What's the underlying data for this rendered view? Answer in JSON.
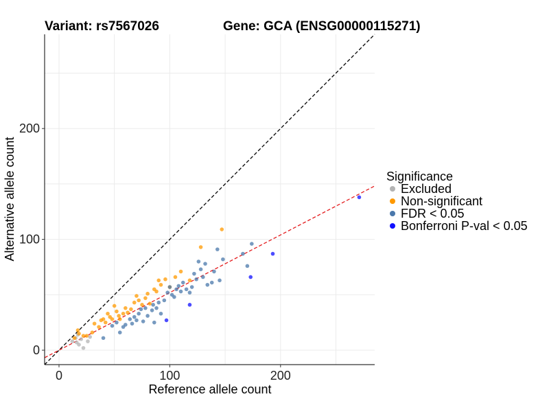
{
  "chart_data": {
    "type": "scatter",
    "title_left": "Variant: rs7567026",
    "title_right": "Gene: GCA (ENSG00000115271)",
    "xlabel": "Reference allele count",
    "ylabel": "Alternative allele count",
    "xlim": [
      -13,
      285
    ],
    "ylim": [
      -13,
      285
    ],
    "xticks": [
      0,
      100,
      200
    ],
    "yticks": [
      0,
      100,
      200
    ],
    "reference_lines": [
      {
        "name": "identity",
        "color": "#000000",
        "slope": 1.0,
        "intercept": 0
      },
      {
        "name": "fit",
        "color": "#e41a1c",
        "slope": 0.52,
        "intercept": 0
      }
    ],
    "legend": {
      "title": "Significance",
      "entries": [
        {
          "label": "Excluded",
          "color": "#b3b3b3"
        },
        {
          "label": "Non-significant",
          "color": "#ff9900"
        },
        {
          "label": "FDR < 0.05",
          "color": "#4a78ab"
        },
        {
          "label": "Bonferroni P-val < 0.05",
          "color": "#1010ff"
        }
      ]
    },
    "series": [
      {
        "name": "Excluded",
        "color": "#b3b3b3",
        "points": [
          [
            12,
            8
          ],
          [
            15,
            11
          ],
          [
            16,
            7
          ],
          [
            18,
            5
          ],
          [
            20,
            10
          ],
          [
            22,
            2
          ],
          [
            26,
            8
          ],
          [
            28,
            12
          ],
          [
            17,
            14
          ]
        ]
      },
      {
        "name": "Non-significant",
        "color": "#ff9900",
        "points": [
          [
            14,
            11
          ],
          [
            18,
            15
          ],
          [
            17,
            18
          ],
          [
            22,
            13
          ],
          [
            25,
            13
          ],
          [
            30,
            16
          ],
          [
            32,
            24
          ],
          [
            36,
            21
          ],
          [
            38,
            27
          ],
          [
            40,
            28
          ],
          [
            42,
            25
          ],
          [
            44,
            33
          ],
          [
            46,
            30
          ],
          [
            48,
            28
          ],
          [
            50,
            40
          ],
          [
            52,
            35
          ],
          [
            54,
            31
          ],
          [
            55,
            28
          ],
          [
            58,
            33
          ],
          [
            60,
            38
          ],
          [
            62,
            34
          ],
          [
            65,
            37
          ],
          [
            68,
            43
          ],
          [
            70,
            49
          ],
          [
            72,
            45
          ],
          [
            75,
            41
          ],
          [
            78,
            47
          ],
          [
            80,
            51
          ],
          [
            82,
            42
          ],
          [
            86,
            55
          ],
          [
            88,
            53
          ],
          [
            90,
            63
          ],
          [
            92,
            59
          ],
          [
            96,
            64
          ],
          [
            100,
            57
          ],
          [
            105,
            66
          ],
          [
            110,
            71
          ],
          [
            118,
            63
          ],
          [
            128,
            93
          ],
          [
            147,
            109
          ]
        ]
      },
      {
        "name": "FDR < 0.05",
        "color": "#4a78ab",
        "points": [
          [
            40,
            11
          ],
          [
            48,
            22
          ],
          [
            52,
            25
          ],
          [
            55,
            16
          ],
          [
            58,
            21
          ],
          [
            60,
            23
          ],
          [
            64,
            28
          ],
          [
            66,
            24
          ],
          [
            68,
            30
          ],
          [
            70,
            27
          ],
          [
            72,
            33
          ],
          [
            74,
            37
          ],
          [
            76,
            26
          ],
          [
            78,
            38
          ],
          [
            80,
            31
          ],
          [
            84,
            36
          ],
          [
            85,
            41
          ],
          [
            86,
            25
          ],
          [
            88,
            38
          ],
          [
            90,
            43
          ],
          [
            92,
            33
          ],
          [
            95,
            45
          ],
          [
            98,
            52
          ],
          [
            100,
            57
          ],
          [
            102,
            50
          ],
          [
            104,
            48
          ],
          [
            106,
            55
          ],
          [
            108,
            58
          ],
          [
            110,
            53
          ],
          [
            112,
            61
          ],
          [
            115,
            55
          ],
          [
            118,
            52
          ],
          [
            120,
            57
          ],
          [
            122,
            69
          ],
          [
            124,
            64
          ],
          [
            126,
            80
          ],
          [
            128,
            73
          ],
          [
            130,
            66
          ],
          [
            132,
            78
          ],
          [
            134,
            59
          ],
          [
            138,
            61
          ],
          [
            140,
            71
          ],
          [
            143,
            91
          ],
          [
            145,
            63
          ],
          [
            148,
            82
          ],
          [
            166,
            87
          ],
          [
            170,
            76
          ],
          [
            174,
            96
          ]
        ]
      },
      {
        "name": "Bonferroni P-val < 0.05",
        "color": "#1010ff",
        "points": [
          [
            97,
            27
          ],
          [
            118,
            41
          ],
          [
            173,
            66
          ],
          [
            193,
            87
          ],
          [
            271,
            138
          ]
        ]
      }
    ]
  }
}
